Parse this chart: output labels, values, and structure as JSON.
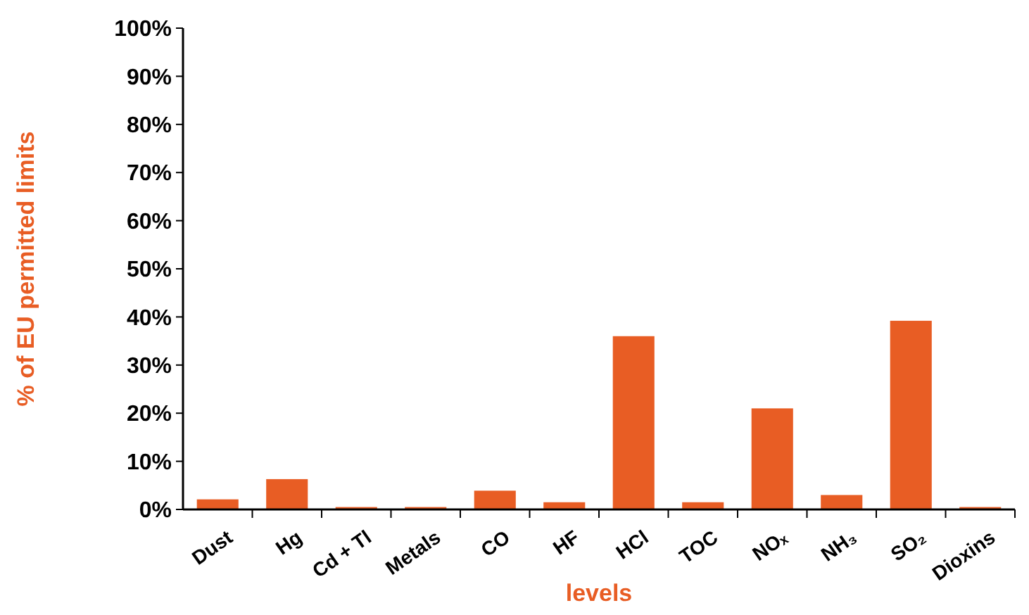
{
  "chart_data": {
    "type": "bar",
    "xlabel": "levels",
    "ylabel": "% of EU permitted limits",
    "categories": [
      "Dust",
      "Hg",
      "Cd + Tl",
      "Metals",
      "CO",
      "HF",
      "HCl",
      "TOC",
      "NOₓ",
      "NH₃",
      "SO₂",
      "Dioxins"
    ],
    "values": [
      2.1,
      6.3,
      0.5,
      0.5,
      3.9,
      1.5,
      36,
      1.5,
      21,
      3,
      39.2,
      0.5
    ],
    "color": "#e85d24",
    "ylim": [
      0,
      100
    ],
    "yticks": [
      {
        "value": 0,
        "label": "0%"
      },
      {
        "value": 10,
        "label": "10%"
      },
      {
        "value": 20,
        "label": "20%"
      },
      {
        "value": 30,
        "label": "30%"
      },
      {
        "value": 40,
        "label": "40%"
      },
      {
        "value": 50,
        "label": "50%"
      },
      {
        "value": 60,
        "label": "60%"
      },
      {
        "value": 70,
        "label": "70%"
      },
      {
        "value": 80,
        "label": "80%"
      },
      {
        "value": 90,
        "label": "90%"
      },
      {
        "value": 100,
        "label": "100%"
      }
    ]
  }
}
